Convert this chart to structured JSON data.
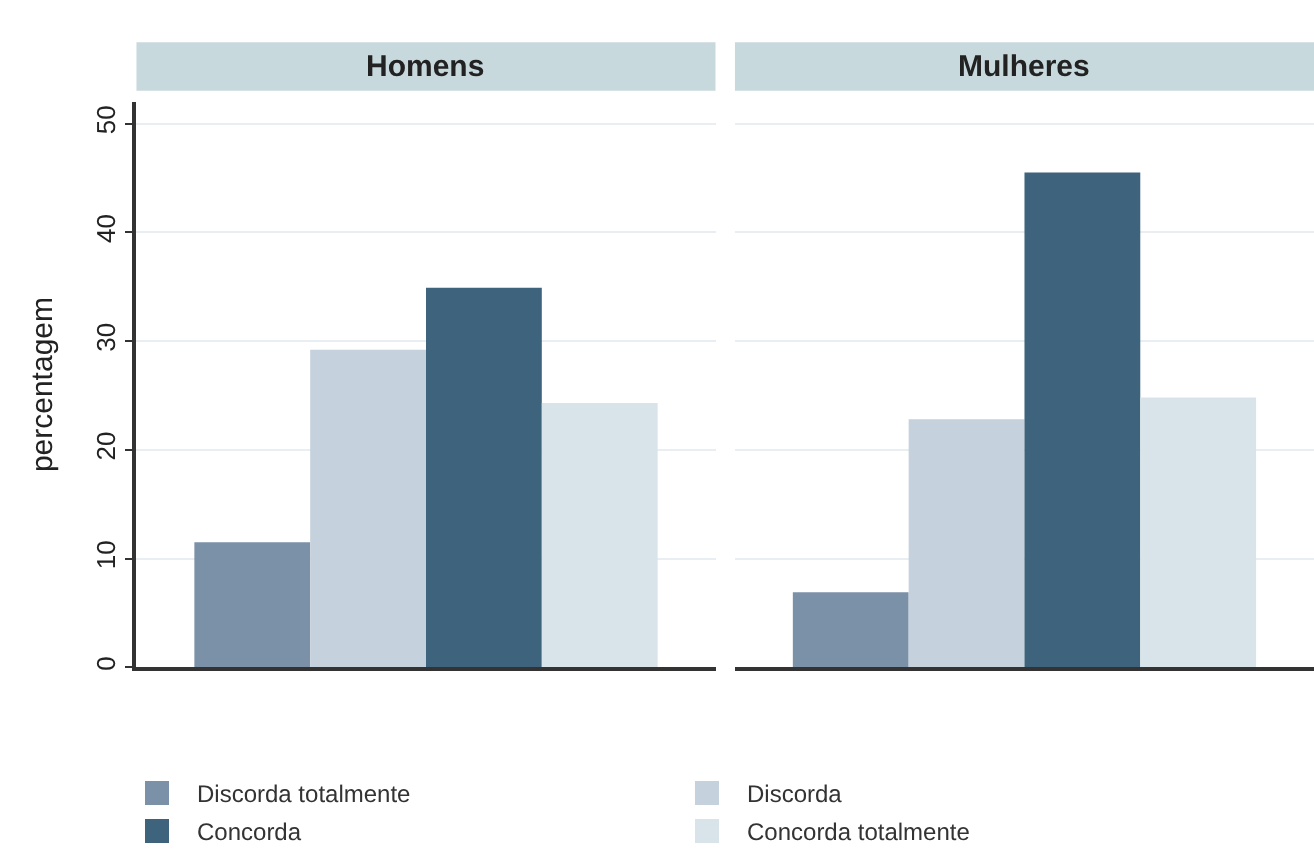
{
  "chart_data": {
    "type": "bar",
    "ylabel": "percentagem",
    "categories": [
      "Homens",
      "Mulheres"
    ],
    "ylim": [
      0,
      52
    ],
    "yticks": [
      0,
      10,
      20,
      30,
      40,
      50
    ],
    "grid": "y",
    "legend": "bottom",
    "series": [
      {
        "name": "Discorda totalmente",
        "color": "#7b91a8",
        "values": [
          11.5,
          6.9
        ]
      },
      {
        "name": "Discorda",
        "color": "#c5d1dc",
        "values": [
          29.2,
          22.8
        ]
      },
      {
        "name": "Concorda",
        "color": "#3e637d",
        "values": [
          34.9,
          45.5
        ]
      },
      {
        "name": "Concorda totalmente",
        "color": "#d8e4ea",
        "values": [
          24.3,
          24.8
        ]
      }
    ]
  }
}
